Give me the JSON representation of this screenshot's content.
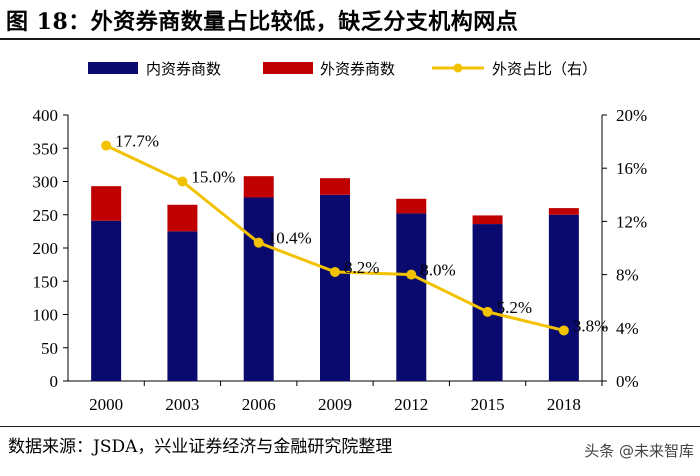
{
  "title": "图 18：外资券商数量占比较低，缺乏分支机构网点",
  "source": "数据来源：JSDA，兴业证券经济与金融研究院整理",
  "watermark": "头条 @未来智库",
  "colors": {
    "domestic": "#0a0a6e",
    "foreign": "#c00000",
    "ratio": "#f2c200"
  },
  "chart_data": {
    "type": "bar",
    "categories": [
      "2000",
      "2003",
      "2006",
      "2009",
      "2012",
      "2015",
      "2018"
    ],
    "series": [
      {
        "name": "内资券商数",
        "kind": "bar",
        "stack": "count",
        "axis": "left",
        "values": [
          241,
          225,
          276,
          280,
          252,
          236,
          250
        ]
      },
      {
        "name": "外资券商数",
        "kind": "bar",
        "stack": "count",
        "axis": "left",
        "values": [
          52,
          40,
          32,
          25,
          22,
          13,
          10
        ]
      },
      {
        "name": "外资占比（右）",
        "kind": "line",
        "axis": "right",
        "values": [
          17.7,
          15.0,
          10.4,
          8.2,
          8.0,
          5.2,
          3.8
        ],
        "labels": [
          "17.7%",
          "15.0%",
          "10.4%",
          "8.2%",
          "8.0%",
          "5.2%",
          "3.8%"
        ]
      }
    ],
    "ylim": [
      0,
      400
    ],
    "yticks": [
      "0",
      "50",
      "100",
      "150",
      "200",
      "250",
      "300",
      "350",
      "400"
    ],
    "y2lim": [
      0,
      20
    ],
    "y2ticks": [
      "0%",
      "4%",
      "8%",
      "12%",
      "16%",
      "20%"
    ],
    "legend_position": "top",
    "grid": false
  }
}
